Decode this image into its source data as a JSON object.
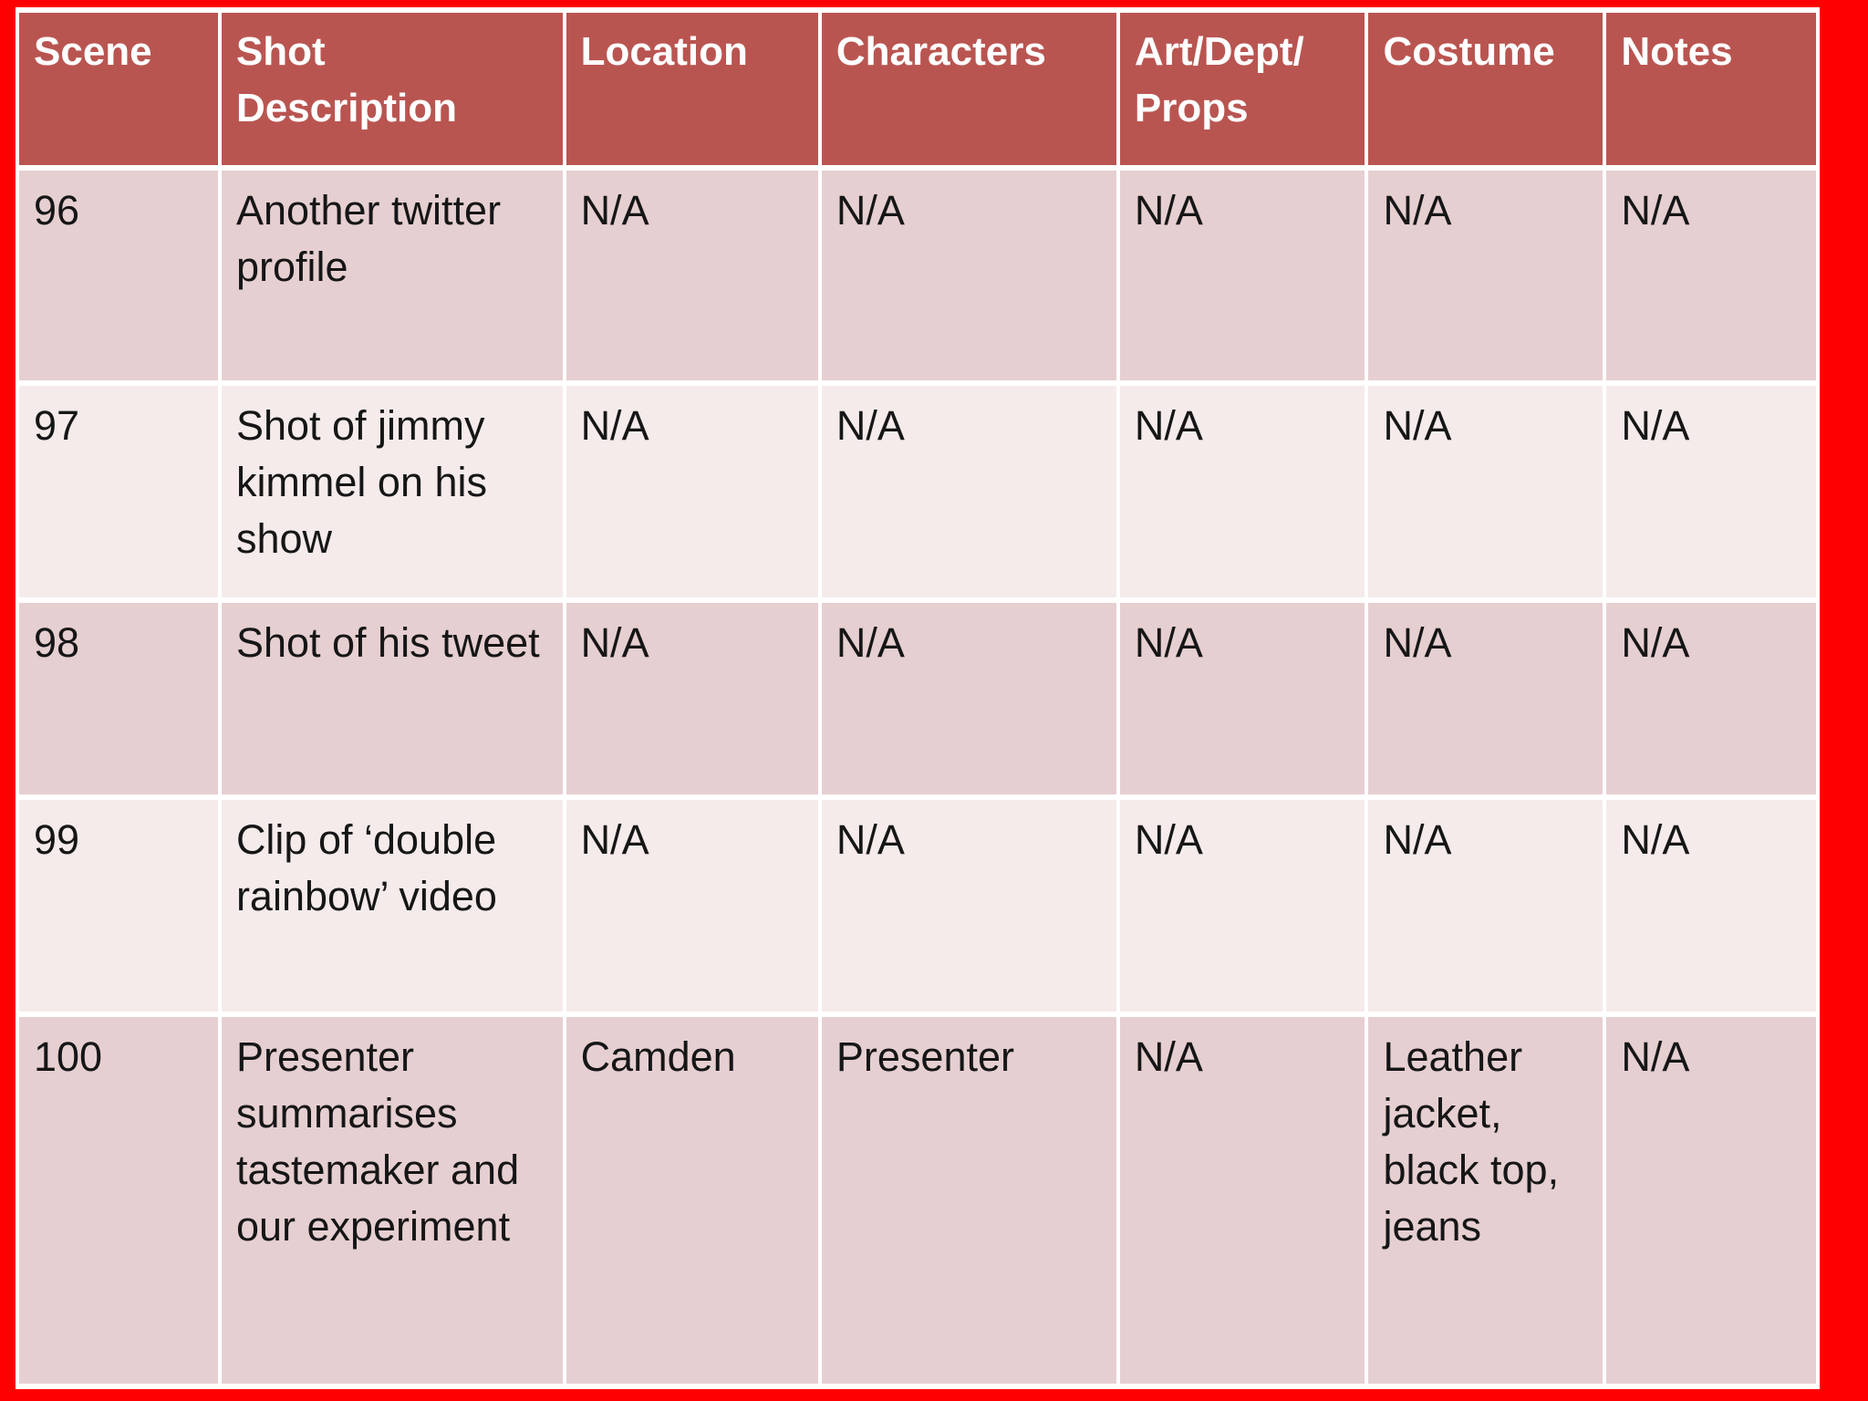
{
  "colors": {
    "frame_red": "#fe0000",
    "header_bg": "#b95551",
    "header_text": "#ffffff",
    "band_dark": "#e6cfd1",
    "band_light": "#f5ebeb",
    "cell_text": "#161616",
    "gridline": "#ffffff"
  },
  "table": {
    "headers": [
      {
        "id": "scene",
        "label": "Scene"
      },
      {
        "id": "shot-description",
        "label": "Shot\nDescription"
      },
      {
        "id": "location",
        "label": "Location"
      },
      {
        "id": "characters",
        "label": "Characters"
      },
      {
        "id": "art-dept-props",
        "label": "Art/Dept/\nProps"
      },
      {
        "id": "costume",
        "label": "Costume"
      },
      {
        "id": "notes",
        "label": "Notes"
      }
    ],
    "rows": [
      {
        "scene": "96",
        "cells": [
          "96",
          "Another twitter profile",
          "N/A",
          "N/A",
          "N/A",
          "N/A",
          "N/A"
        ]
      },
      {
        "scene": "97",
        "cells": [
          "97",
          "Shot of jimmy kimmel on his show",
          "N/A",
          "N/A",
          "N/A",
          "N/A",
          "N/A"
        ]
      },
      {
        "scene": "98",
        "cells": [
          "98",
          "Shot of his tweet",
          "N/A",
          "N/A",
          "N/A",
          "N/A",
          "N/A"
        ]
      },
      {
        "scene": "99",
        "cells": [
          "99",
          "Clip of ‘double rainbow’ video",
          "N/A",
          "N/A",
          "N/A",
          "N/A",
          "N/A"
        ]
      },
      {
        "scene": "100",
        "cells": [
          "100",
          "Presenter summarises tastemaker and our experiment",
          "Camden",
          "Presenter",
          "N/A",
          "Leather jacket, black top, jeans",
          "N/A"
        ]
      }
    ]
  }
}
